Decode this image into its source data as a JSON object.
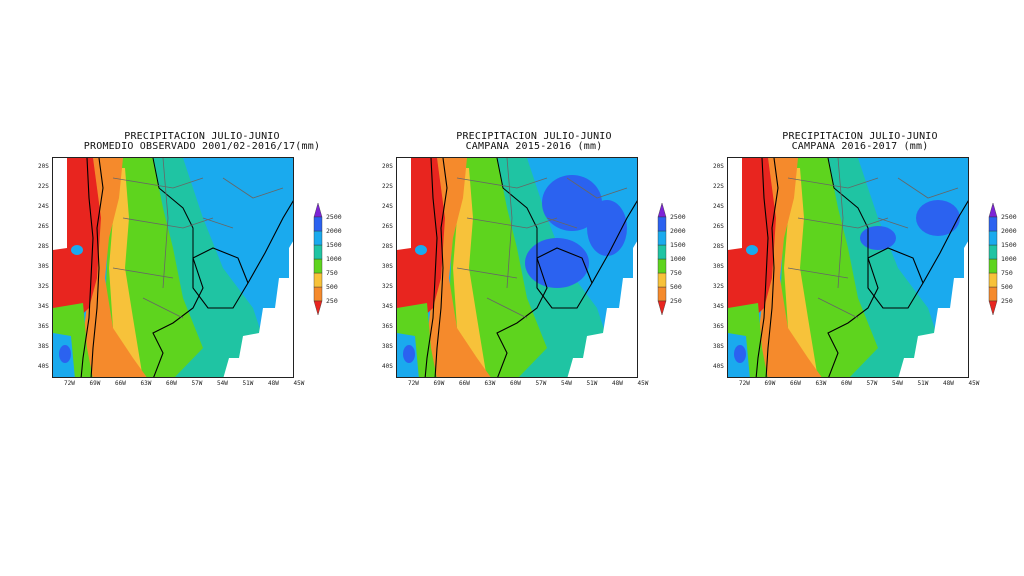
{
  "colorbar": {
    "levels": [
      "250",
      "500",
      "750",
      "1000",
      "1500",
      "2000",
      "2500"
    ],
    "colors": [
      "#e8251f",
      "#f58a2c",
      "#f7c23a",
      "#5ed41e",
      "#1fc4a3",
      "#1aaaee",
      "#2b62f0",
      "#7d23d6"
    ]
  },
  "panels": [
    {
      "title_line1": "PRECIPITACION JULIO-JUNIO",
      "title_line2": "PROMEDIO OBSERVADO 2001/02-2016/17(mm)",
      "lat_labels": [
        "20S",
        "22S",
        "24S",
        "26S",
        "28S",
        "30S",
        "32S",
        "34S",
        "36S",
        "38S",
        "40S"
      ],
      "lon_labels": [
        "72W",
        "69W",
        "66W",
        "63W",
        "60W",
        "57W",
        "54W",
        "51W",
        "48W",
        "45W"
      ]
    },
    {
      "title_line1": "PRECIPITACION JULIO-JUNIO",
      "title_line2": "CAMPANA 2015-2016 (mm)",
      "lat_labels": [
        "20S",
        "22S",
        "24S",
        "26S",
        "28S",
        "30S",
        "32S",
        "34S",
        "36S",
        "38S",
        "40S"
      ],
      "lon_labels": [
        "72W",
        "69W",
        "66W",
        "63W",
        "60W",
        "57W",
        "54W",
        "51W",
        "48W",
        "45W"
      ]
    },
    {
      "title_line1": "PRECIPITACION JULIO-JUNIO",
      "title_line2": "CAMPANA 2016-2017 (mm)",
      "lat_labels": [
        "20S",
        "22S",
        "24S",
        "26S",
        "28S",
        "30S",
        "32S",
        "34S",
        "36S",
        "38S",
        "40S"
      ],
      "lon_labels": [
        "72W",
        "69W",
        "66W",
        "63W",
        "60W",
        "57W",
        "54W",
        "51W",
        "48W",
        "45W"
      ]
    }
  ]
}
